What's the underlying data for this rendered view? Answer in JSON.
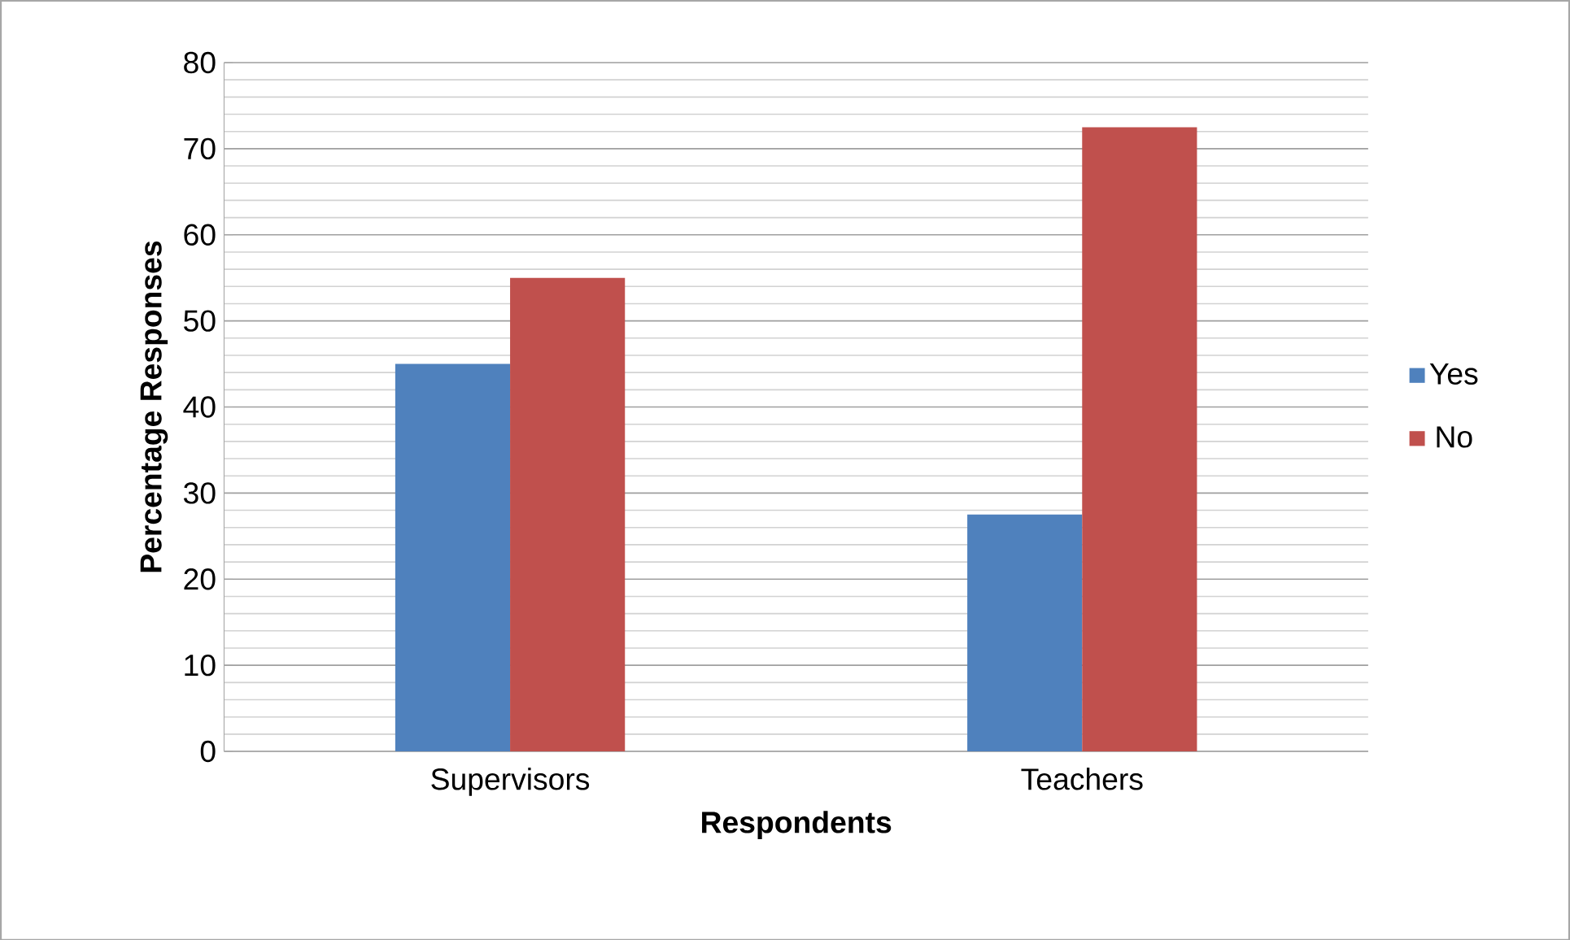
{
  "chart_data": {
    "type": "bar",
    "xlabel": "Respondents",
    "ylabel": "Percentage Responses",
    "categories": [
      "Supervisors",
      "Teachers"
    ],
    "series": [
      {
        "name": "Yes",
        "color": "#4f81bd",
        "values": [
          45,
          27.5
        ]
      },
      {
        "name": "No",
        "color": "#c0504d",
        "values": [
          55,
          72.5
        ]
      }
    ],
    "ylim": [
      0,
      80
    ],
    "yticks": [
      0,
      10,
      20,
      30,
      40,
      50,
      60,
      70,
      80
    ],
    "grid": "y",
    "legend": "right"
  }
}
